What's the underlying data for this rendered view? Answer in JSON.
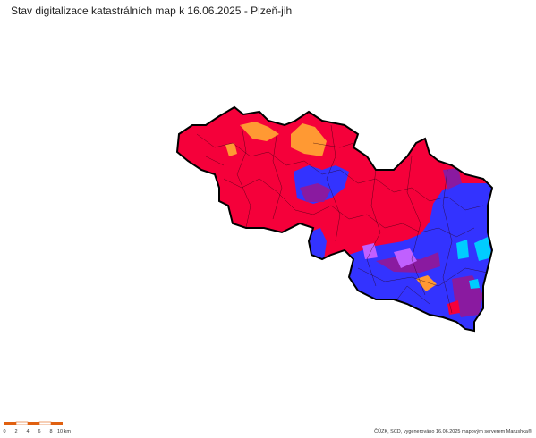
{
  "header": {
    "title": "Stav digitalizace katastrálních map k 16.06.2025 - Plzeň-jih"
  },
  "scale_bar": {
    "labels": [
      "0",
      "2",
      "4",
      "6",
      "8",
      "10 km"
    ]
  },
  "footer": {
    "credit": "ČÚZK, SCD, vygenerováno 16.06.2025 mapovým serverem Marushka®"
  }
}
